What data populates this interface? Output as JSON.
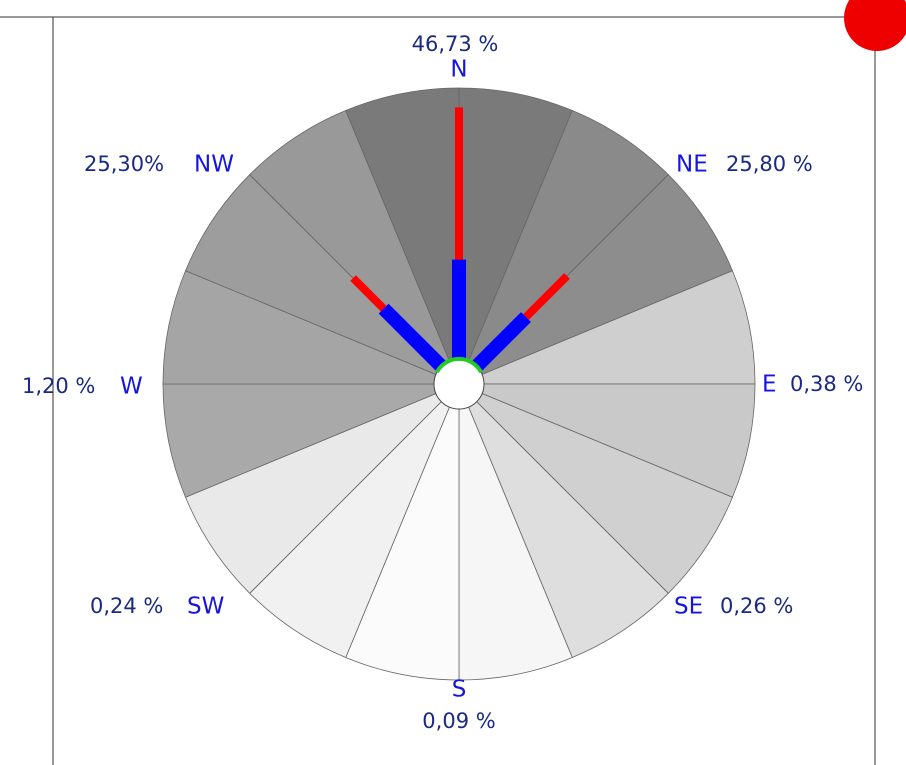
{
  "chart_data": {
    "type": "windrose",
    "categories": [
      "N",
      "NE",
      "E",
      "SE",
      "S",
      "SW",
      "W",
      "NW"
    ],
    "values": [
      46.73,
      25.8,
      0.38,
      0.26,
      0.09,
      0.24,
      1.2,
      25.3
    ],
    "value_labels": [
      "46,73 %",
      "25,80 %",
      "0,38 %",
      "0,26 %",
      "0,09 %",
      "0,24 %",
      "1,20 %",
      "25,30%"
    ],
    "color": "#ff0000",
    "series": [
      {
        "color": "#0000ff",
        "values": [
          21,
          16,
          0.2,
          0.1,
          0.05,
          0.1,
          0.9,
          18
        ]
      }
    ],
    "rlim": [
      0,
      50
    ]
  }
}
